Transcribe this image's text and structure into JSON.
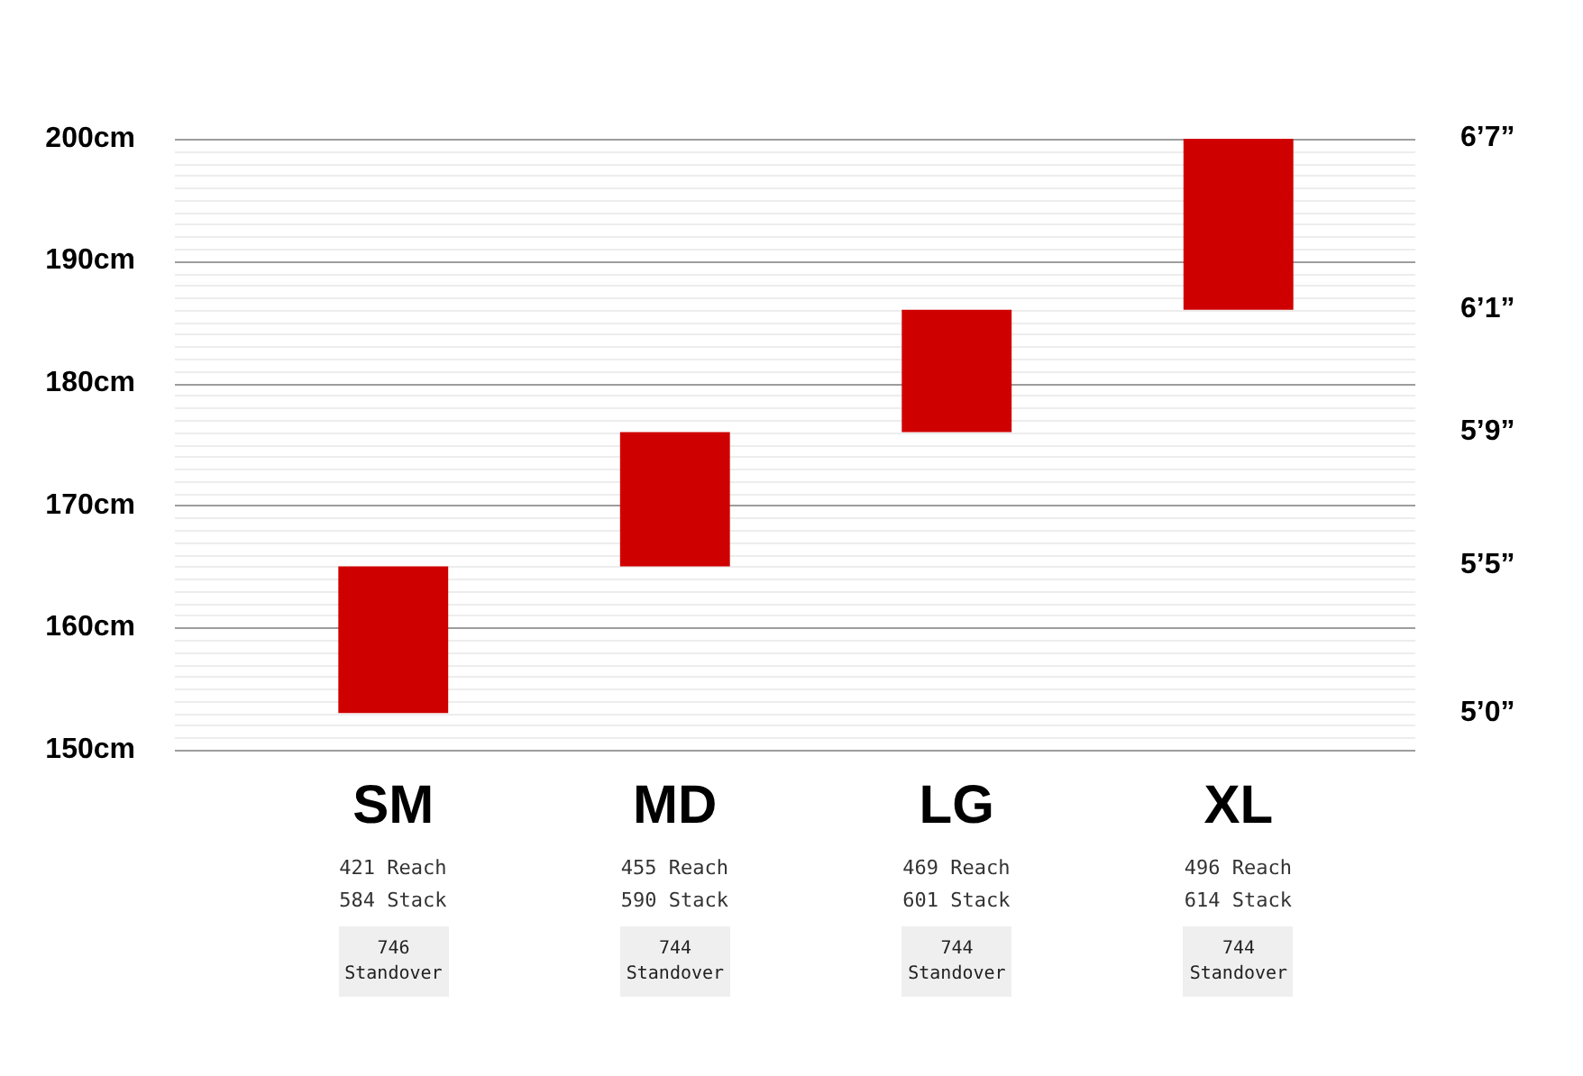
{
  "chart_data": {
    "type": "bar",
    "categories": [
      "SM",
      "MD",
      "LG",
      "XL"
    ],
    "values": [
      12,
      11,
      10,
      14
    ],
    "base": [
      153,
      165,
      176,
      186
    ],
    "color": "#cf0000",
    "ylim": [
      150,
      200
    ],
    "yticks": [
      {
        "value": 150,
        "label": "150cm"
      },
      {
        "value": 151,
        "label": null
      },
      {
        "value": 152,
        "label": null
      },
      {
        "value": 153,
        "label": null
      },
      {
        "value": 154,
        "label": null
      },
      {
        "value": 155,
        "label": null
      },
      {
        "value": 156,
        "label": null
      },
      {
        "value": 157,
        "label": null
      },
      {
        "value": 158,
        "label": null
      },
      {
        "value": 159,
        "label": null
      },
      {
        "value": 160,
        "label": "160cm"
      },
      {
        "value": 161,
        "label": null
      },
      {
        "value": 162,
        "label": null
      },
      {
        "value": 163,
        "label": null
      },
      {
        "value": 164,
        "label": null
      },
      {
        "value": 165,
        "label": null
      },
      {
        "value": 166,
        "label": null
      },
      {
        "value": 167,
        "label": null
      },
      {
        "value": 168,
        "label": null
      },
      {
        "value": 169,
        "label": null
      },
      {
        "value": 170,
        "label": "170cm"
      },
      {
        "value": 171,
        "label": null
      },
      {
        "value": 172,
        "label": null
      },
      {
        "value": 173,
        "label": null
      },
      {
        "value": 174,
        "label": null
      },
      {
        "value": 175,
        "label": null
      },
      {
        "value": 176,
        "label": null
      },
      {
        "value": 177,
        "label": null
      },
      {
        "value": 178,
        "label": null
      },
      {
        "value": 179,
        "label": null
      },
      {
        "value": 180,
        "label": "180cm"
      },
      {
        "value": 181,
        "label": null
      },
      {
        "value": 182,
        "label": null
      },
      {
        "value": 183,
        "label": null
      },
      {
        "value": 184,
        "label": null
      },
      {
        "value": 185,
        "label": null
      },
      {
        "value": 186,
        "label": null
      },
      {
        "value": 187,
        "label": null
      },
      {
        "value": 188,
        "label": null
      },
      {
        "value": 189,
        "label": null
      },
      {
        "value": 190,
        "label": "190cm"
      },
      {
        "value": 191,
        "label": null
      },
      {
        "value": 192,
        "label": null
      },
      {
        "value": 193,
        "label": null
      },
      {
        "value": 194,
        "label": null
      },
      {
        "value": 195,
        "label": null
      },
      {
        "value": 196,
        "label": null
      },
      {
        "value": 197,
        "label": null
      },
      {
        "value": 198,
        "label": null
      },
      {
        "value": 199,
        "label": null
      },
      {
        "value": 200,
        "label": "200cm"
      }
    ],
    "grid": "y",
    "annotations": [
      "6’7”",
      "6’1”",
      "5’9”",
      "5’5”",
      "5’0”",
      "421 Reach",
      "584 Stack",
      "746\nStandover",
      "455 Reach",
      "590 Stack",
      "744\nStandover",
      "469 Reach",
      "601 Stack",
      "744\nStandover",
      "496 Reach",
      "614 Stack",
      "744\nStandover"
    ]
  }
}
